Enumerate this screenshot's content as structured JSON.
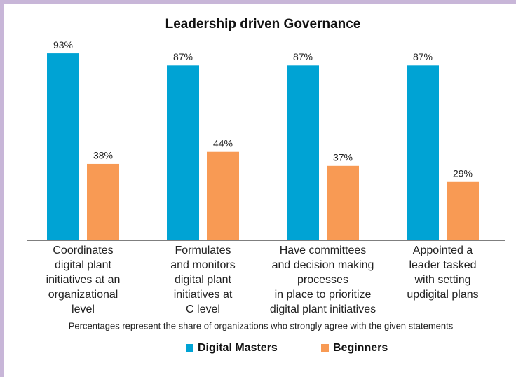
{
  "chart_data": {
    "type": "bar",
    "title": "Leadership driven Governance",
    "categories": [
      "Coordinates\ndigital plant\ninitiatives at an\norganizational\nlevel",
      "Formulates\nand monitors\ndigital plant\ninitiatives at\nC level",
      "Have committees\nand decision making\nprocesses\nin place to prioritize\ndigital plant initiatives",
      "Appointed a\nleader tasked\nwith setting\nupdigital plans"
    ],
    "series": [
      {
        "name": "Digital Masters",
        "color": "#00a3d4",
        "values": [
          93,
          87,
          87,
          87
        ],
        "value_labels": [
          "93%",
          "87%",
          "87%",
          "87%"
        ]
      },
      {
        "name": "Beginners",
        "color": "#f89a54",
        "values": [
          38,
          44,
          37,
          29
        ],
        "value_labels": [
          "38%",
          "44%",
          "37%",
          "29%"
        ]
      }
    ],
    "annotations": [
      "Percentages represent the share of organizations who strongly agree with the given statements"
    ],
    "legend": "bottom"
  }
}
